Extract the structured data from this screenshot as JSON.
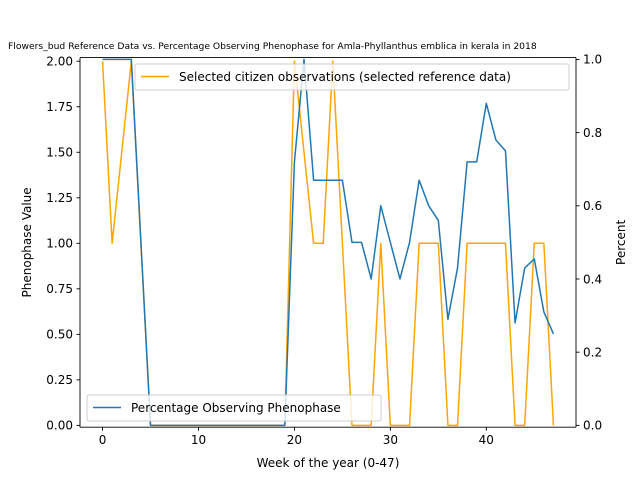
{
  "chart_data": {
    "type": "line",
    "title": "Flowers_bud Reference Data vs. Percentage Observing Phenophase for Amla-Phyllanthus emblica in kerala in 2018",
    "xlabel": "Week of the year (0-47)",
    "ylabel_left": "Phenophase Value",
    "ylabel_right": "Percent",
    "xlim": [
      -2.35,
      49.35
    ],
    "ylim_left": [
      -0.01,
      2.02
    ],
    "ylim_right": [
      -0.005,
      1.005
    ],
    "x_ticks": [
      0,
      10,
      20,
      30,
      40
    ],
    "y_left_ticks": [
      "0.00",
      "0.25",
      "0.50",
      "0.75",
      "1.00",
      "1.25",
      "1.50",
      "1.75",
      "2.00"
    ],
    "y_right_ticks": [
      "0.0",
      "0.2",
      "0.4",
      "0.6",
      "0.8",
      "1.0"
    ],
    "series": [
      {
        "name": "Selected citizen observations (selected reference data)",
        "axis": "left",
        "color": "#ffa500",
        "legend_position": "upper right",
        "x": [
          0,
          1,
          2,
          3,
          4,
          5,
          6,
          7,
          8,
          9,
          10,
          11,
          12,
          13,
          14,
          15,
          16,
          17,
          18,
          19,
          20,
          21,
          22,
          23,
          24,
          25,
          26,
          27,
          28,
          29,
          30,
          31,
          32,
          33,
          34,
          35,
          36,
          37,
          38,
          39,
          40,
          41,
          42,
          43,
          44,
          45,
          46,
          47
        ],
        "values": [
          2,
          1,
          1.5,
          2,
          1,
          0,
          0,
          0,
          0,
          0,
          0,
          0,
          0,
          0,
          0,
          0,
          0,
          0,
          0,
          0,
          2,
          1.5,
          1,
          1,
          2,
          1,
          0,
          0,
          0,
          1,
          0,
          0,
          0,
          1,
          1,
          1,
          0,
          0,
          1,
          1,
          1,
          1,
          1,
          0,
          0,
          1,
          1,
          0
        ]
      },
      {
        "name": "Percentage Observing Phenophase",
        "axis": "right",
        "color": "#1f77b4",
        "legend_position": "lower left",
        "x": [
          0,
          1,
          2,
          3,
          4,
          5,
          6,
          7,
          8,
          9,
          10,
          11,
          12,
          13,
          14,
          15,
          16,
          17,
          18,
          19,
          20,
          21,
          22,
          23,
          24,
          25,
          26,
          27,
          28,
          29,
          30,
          31,
          32,
          33,
          34,
          35,
          36,
          37,
          38,
          39,
          40,
          41,
          42,
          43,
          44,
          45,
          46,
          47
        ],
        "values": [
          1,
          1,
          1,
          1,
          0.5,
          0,
          0,
          0,
          0,
          0,
          0,
          0,
          0,
          0,
          0,
          0,
          0,
          0,
          0,
          0,
          0.72,
          1,
          0.67,
          0.67,
          0.67,
          0.67,
          0.5,
          0.5,
          0.4,
          0.6,
          0.5,
          0.4,
          0.5,
          0.67,
          0.6,
          0.56,
          0.29,
          0.43,
          0.72,
          0.72,
          0.88,
          0.78,
          0.75,
          0.28,
          0.43,
          0.455,
          0.31,
          0.25
        ]
      }
    ]
  }
}
